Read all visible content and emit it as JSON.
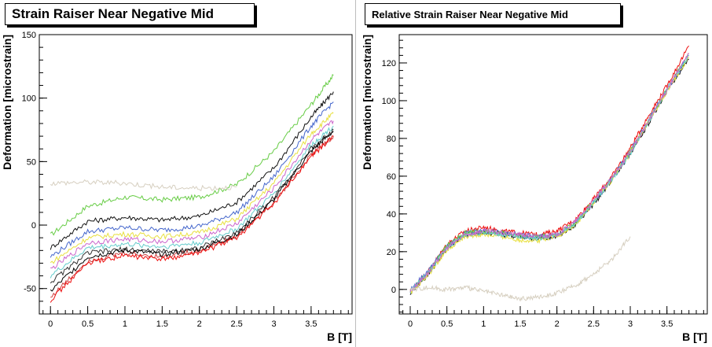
{
  "chart_data": [
    {
      "type": "line",
      "title": "Strain Raiser Near Negative Mid",
      "xlabel": "B [T]",
      "ylabel": "Deformation [microstrain]",
      "xlim": [
        -0.15,
        4.05
      ],
      "ylim": [
        -70,
        150
      ],
      "x_ticks": [
        0,
        0.5,
        1,
        1.5,
        2,
        2.5,
        3,
        3.5
      ],
      "x_tick_labels": [
        "0",
        "0.5",
        "1",
        "1.5",
        "2",
        "2.5",
        "3",
        "3.5"
      ],
      "y_ticks": [
        -50,
        0,
        50,
        100,
        150
      ],
      "y_tick_labels": [
        "-50",
        "0",
        "50",
        "100",
        "150"
      ],
      "grid": false,
      "series": [
        {
          "color": "#66cc44",
          "x": [
            0,
            0.5,
            1,
            1.5,
            2,
            2.5,
            3,
            3.5,
            3.8
          ],
          "y": [
            -8,
            15,
            22,
            20,
            22,
            32,
            58,
            95,
            118
          ]
        },
        {
          "color": "#111111",
          "x": [
            0,
            0.5,
            1,
            1.5,
            2,
            2.5,
            3,
            3.5,
            3.8
          ],
          "y": [
            -18,
            3,
            6,
            4,
            7,
            18,
            45,
            85,
            105
          ]
        },
        {
          "color": "#4466cc",
          "x": [
            0,
            0.5,
            1,
            1.5,
            2,
            2.5,
            3,
            3.5,
            3.8
          ],
          "y": [
            -25,
            -5,
            -2,
            -4,
            -1,
            10,
            38,
            78,
            97
          ]
        },
        {
          "color": "#e8e040",
          "x": [
            0,
            0.5,
            1,
            1.5,
            2,
            2.5,
            3,
            3.5,
            3.8
          ],
          "y": [
            -30,
            -10,
            -7,
            -9,
            -6,
            5,
            33,
            72,
            88
          ]
        },
        {
          "color": "#cc66cc",
          "x": [
            0,
            0.5,
            1,
            1.5,
            2,
            2.5,
            3,
            3.5,
            3.8
          ],
          "y": [
            -35,
            -14,
            -11,
            -13,
            -10,
            1,
            29,
            67,
            82
          ]
        },
        {
          "color": "#66cccc",
          "x": [
            0,
            0.5,
            1,
            1.5,
            2,
            2.5,
            3,
            3.5,
            3.8
          ],
          "y": [
            -40,
            -18,
            -15,
            -17,
            -14,
            -3,
            25,
            63,
            78
          ]
        },
        {
          "color": "#333333",
          "x": [
            0,
            0.5,
            1,
            1.5,
            2,
            2.5,
            3,
            3.5,
            3.8
          ],
          "y": [
            -45,
            -22,
            -19,
            -21,
            -18,
            -6,
            22,
            60,
            75
          ]
        },
        {
          "color": "#cc4444",
          "x": [
            0,
            0.5,
            1,
            1.5,
            2,
            2.5,
            3,
            3.5,
            3.8
          ],
          "y": [
            -57,
            -28,
            -22,
            -25,
            -20,
            -9,
            18,
            55,
            70
          ]
        },
        {
          "color": "#000000",
          "x": [
            0,
            0.5,
            1,
            1.5,
            2,
            2.5,
            3,
            3.5,
            3.8
          ],
          "y": [
            -52,
            -25,
            -20,
            -23,
            -19,
            -8,
            20,
            58,
            74
          ]
        },
        {
          "color": "#ee1111",
          "x": [
            0,
            0.5,
            1,
            1.5,
            2,
            2.5,
            3,
            3.5,
            3.8
          ],
          "y": [
            -59,
            -30,
            -24,
            -27,
            -22,
            -10,
            17,
            54,
            70
          ]
        },
        {
          "color": "#d6cfc0",
          "x": [
            0,
            0.5,
            1,
            1.5,
            2,
            2.5
          ],
          "y": [
            33,
            34,
            33,
            30,
            29,
            30
          ]
        }
      ]
    },
    {
      "type": "line",
      "title": "Relative Strain Raiser Near Negative Mid",
      "xlabel": "B [T]",
      "ylabel": "Deformation [microstrain]",
      "xlim": [
        -0.15,
        4.05
      ],
      "ylim": [
        -13,
        135
      ],
      "x_ticks": [
        0,
        0.5,
        1,
        1.5,
        2,
        2.5,
        3,
        3.5
      ],
      "x_tick_labels": [
        "0",
        "0.5",
        "1",
        "1.5",
        "2",
        "2.5",
        "3",
        "3.5"
      ],
      "y_ticks": [
        0,
        20,
        40,
        60,
        80,
        100,
        120
      ],
      "y_tick_labels": [
        "0",
        "20",
        "40",
        "60",
        "80",
        "100",
        "120"
      ],
      "grid": false,
      "series": [
        {
          "color": "#ee1111",
          "x": [
            0,
            0.25,
            0.5,
            0.75,
            1,
            1.25,
            1.5,
            1.75,
            2,
            2.25,
            2.5,
            2.75,
            3,
            3.25,
            3.5,
            3.8
          ],
          "y": [
            -1,
            10,
            24,
            31,
            33,
            31,
            30,
            29,
            31,
            37,
            48,
            60,
            75,
            92,
            108,
            129
          ]
        },
        {
          "color": "#111111",
          "x": [
            0,
            0.25,
            0.5,
            0.75,
            1,
            1.25,
            1.5,
            1.75,
            2,
            2.25,
            2.5,
            2.75,
            3,
            3.25,
            3.5,
            3.8
          ],
          "y": [
            -2,
            8,
            22,
            29,
            30,
            29,
            28,
            27,
            28,
            34,
            45,
            58,
            72,
            88,
            105,
            122
          ]
        },
        {
          "color": "#4466cc",
          "x": [
            0,
            0.25,
            0.5,
            0.75,
            1,
            1.25,
            1.5,
            1.75,
            2,
            2.25,
            2.5,
            2.75,
            3,
            3.25,
            3.5,
            3.8
          ],
          "y": [
            0,
            10,
            23,
            30,
            31,
            30,
            29,
            28,
            29,
            35,
            46,
            59,
            73,
            90,
            106,
            124
          ]
        },
        {
          "color": "#66cc44",
          "x": [
            0,
            0.25,
            0.5,
            0.75,
            1,
            1.25,
            1.5,
            1.75,
            2,
            2.25,
            2.5,
            2.75,
            3,
            3.25,
            3.5,
            3.8
          ],
          "y": [
            -1,
            9,
            23,
            30,
            31,
            30,
            28,
            28,
            29,
            35,
            47,
            59,
            73,
            89,
            106,
            125
          ]
        },
        {
          "color": "#e8e040",
          "x": [
            0,
            0.25,
            0.5,
            0.75,
            1,
            1.25,
            1.5,
            1.75,
            2,
            2.25,
            2.5,
            2.75,
            3,
            3.25,
            3.5,
            3.8
          ],
          "y": [
            -2,
            8,
            21,
            28,
            29,
            28,
            26,
            26,
            28,
            34,
            46,
            58,
            72,
            89,
            105,
            123
          ]
        },
        {
          "color": "#66cccc",
          "x": [
            0,
            0.25,
            0.5,
            0.75,
            1,
            1.25,
            1.5,
            1.75,
            2,
            2.25,
            2.5,
            2.75,
            3,
            3.25,
            3.5,
            3.8
          ],
          "y": [
            -1,
            9,
            22,
            29,
            30,
            29,
            28,
            27,
            29,
            35,
            46,
            58,
            72,
            89,
            106,
            124
          ]
        },
        {
          "color": "#cc66cc",
          "x": [
            0,
            0.25,
            0.5,
            0.75,
            1,
            1.25,
            1.5,
            1.75,
            2,
            2.25,
            2.5,
            2.75,
            3,
            3.25,
            3.5,
            3.8
          ],
          "y": [
            -1,
            9,
            22,
            29,
            31,
            30,
            29,
            28,
            29,
            36,
            47,
            59,
            73,
            89,
            106,
            125
          ]
        },
        {
          "color": "#d6cfc0",
          "x": [
            0,
            0.25,
            0.5,
            0.75,
            1,
            1.25,
            1.5,
            1.75,
            2,
            2.25,
            2.5,
            2.75,
            3
          ],
          "y": [
            0,
            1,
            0,
            1,
            -1,
            -3,
            -5,
            -4,
            -2,
            2,
            8,
            16,
            28
          ]
        }
      ]
    }
  ]
}
